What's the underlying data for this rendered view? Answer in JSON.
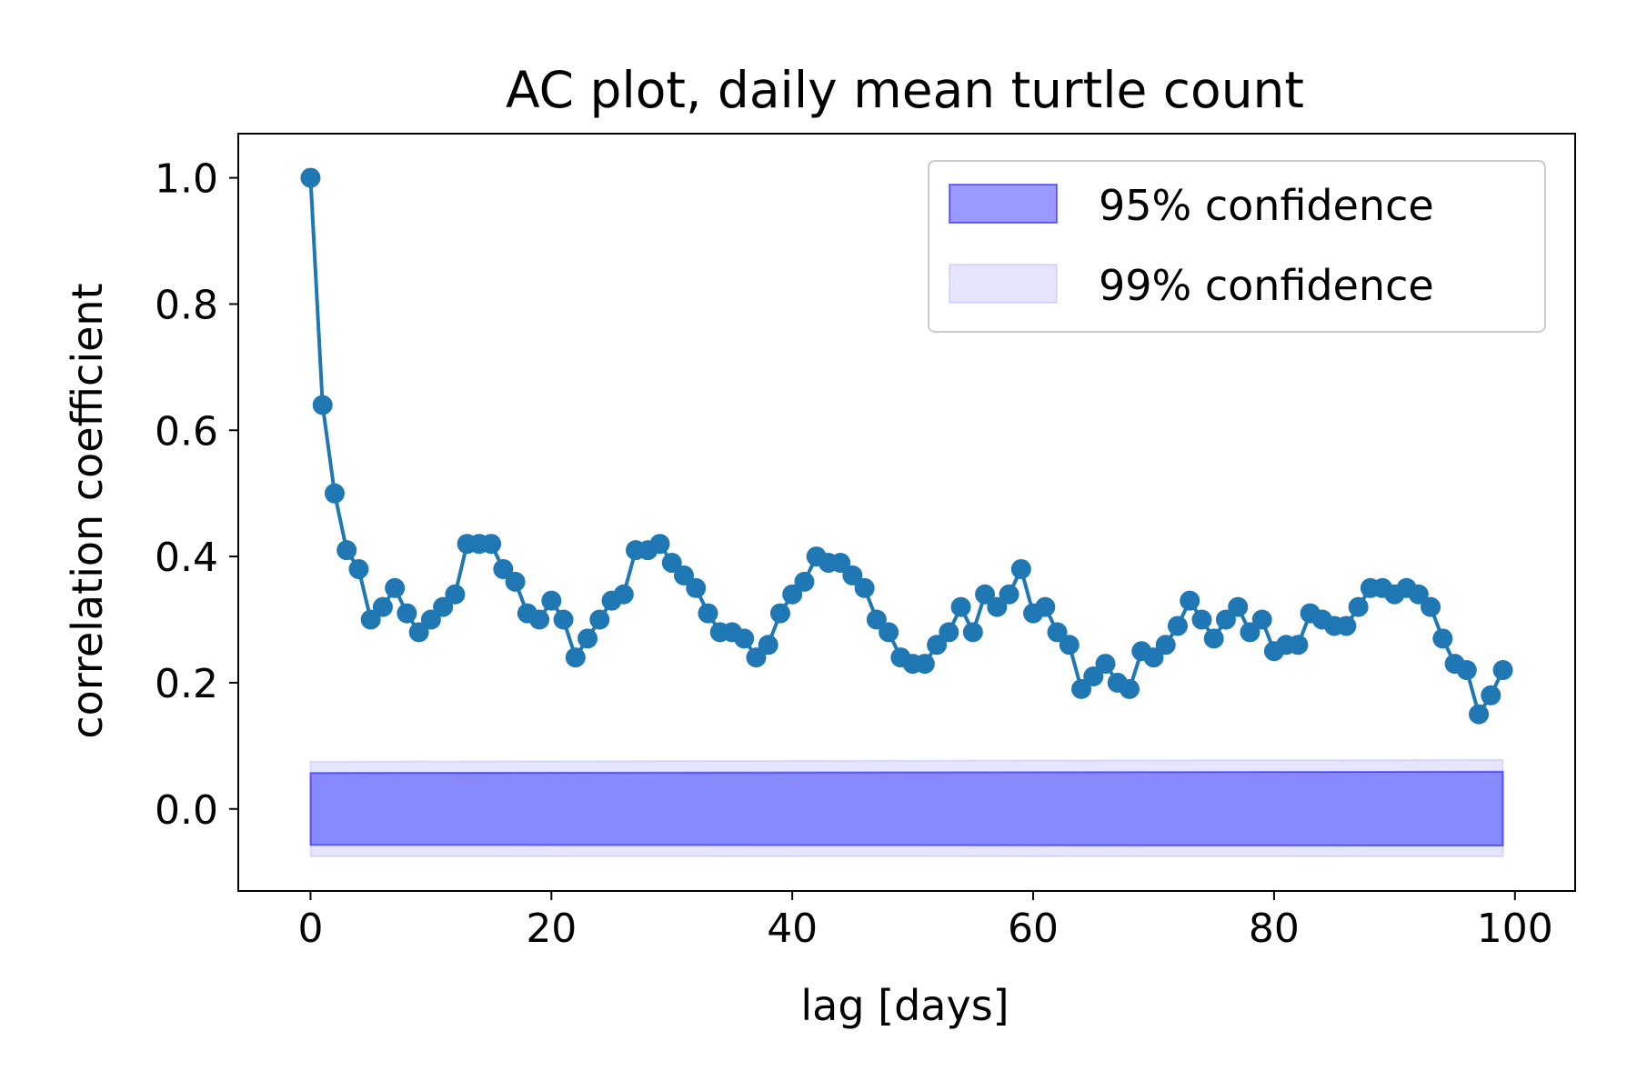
{
  "chart_data": {
    "type": "line",
    "title": "AC plot, daily mean turtle count",
    "xlabel": "lag [days]",
    "ylabel": "correlation coefficient",
    "xlim": [
      -6,
      105
    ],
    "ylim": [
      -0.13,
      1.07
    ],
    "x_ticks": [
      0,
      20,
      40,
      60,
      80,
      100
    ],
    "x_tick_labels": [
      "0",
      "20",
      "40",
      "60",
      "80",
      "100"
    ],
    "y_ticks": [
      0.0,
      0.2,
      0.4,
      0.6,
      0.8,
      1.0
    ],
    "y_tick_labels": [
      "0.0",
      "0.2",
      "0.4",
      "0.6",
      "0.8",
      "1.0"
    ],
    "grid": false,
    "legend_position": "top-right",
    "series": [
      {
        "color": "#1f77b4",
        "marker": "circle",
        "x": [
          0,
          1,
          2,
          3,
          4,
          5,
          6,
          7,
          8,
          9,
          10,
          11,
          12,
          13,
          14,
          15,
          16,
          17,
          18,
          19,
          20,
          21,
          22,
          23,
          24,
          25,
          26,
          27,
          28,
          29,
          30,
          31,
          32,
          33,
          34,
          35,
          36,
          37,
          38,
          39,
          40,
          41,
          42,
          43,
          44,
          45,
          46,
          47,
          48,
          49,
          50,
          51,
          52,
          53,
          54,
          55,
          56,
          57,
          58,
          59,
          60,
          61,
          62,
          63,
          64,
          65,
          66,
          67,
          68,
          69,
          70,
          71,
          72,
          73,
          74,
          75,
          76,
          77,
          78,
          79,
          80,
          81,
          82,
          83,
          84,
          85,
          86,
          87,
          88,
          89,
          90,
          91,
          92,
          93,
          94,
          95,
          96,
          97,
          98,
          99
        ],
        "y": [
          1.0,
          0.64,
          0.5,
          0.41,
          0.38,
          0.3,
          0.32,
          0.35,
          0.31,
          0.28,
          0.3,
          0.32,
          0.34,
          0.42,
          0.42,
          0.42,
          0.38,
          0.36,
          0.31,
          0.3,
          0.33,
          0.3,
          0.24,
          0.27,
          0.3,
          0.33,
          0.34,
          0.41,
          0.41,
          0.42,
          0.39,
          0.37,
          0.35,
          0.31,
          0.28,
          0.28,
          0.27,
          0.24,
          0.26,
          0.31,
          0.34,
          0.36,
          0.4,
          0.39,
          0.39,
          0.37,
          0.35,
          0.3,
          0.28,
          0.24,
          0.23,
          0.23,
          0.26,
          0.28,
          0.32,
          0.28,
          0.34,
          0.32,
          0.34,
          0.38,
          0.31,
          0.32,
          0.28,
          0.26,
          0.19,
          0.21,
          0.23,
          0.2,
          0.19,
          0.25,
          0.24,
          0.26,
          0.29,
          0.33,
          0.3,
          0.27,
          0.3,
          0.32,
          0.28,
          0.3,
          0.25,
          0.26,
          0.26,
          0.31,
          0.3,
          0.29,
          0.29,
          0.32,
          0.35,
          0.35,
          0.34,
          0.35,
          0.34,
          0.32,
          0.27,
          0.23,
          0.22,
          0.15,
          0.18,
          0.22
        ]
      }
    ],
    "bands": [
      {
        "name": "99% confidence",
        "x": [
          0,
          99
        ],
        "lower": [
          -0.075,
          -0.075
        ],
        "upper": [
          0.075,
          0.078
        ],
        "color": "#0000ff",
        "fill_opacity": 0.1,
        "edge_opacity": 0.1
      },
      {
        "name": "95% confidence",
        "x": [
          0,
          99
        ],
        "lower": [
          -0.057,
          -0.058
        ],
        "upper": [
          0.057,
          0.059
        ],
        "color": "#0000ff",
        "fill_opacity": 0.4,
        "edge_opacity": 0.5
      }
    ],
    "legend": {
      "entries": [
        {
          "label": "95% confidence",
          "color": "#0000ff",
          "fill_opacity": 0.4,
          "edge_opacity": 0.5
        },
        {
          "label": "99% confidence",
          "color": "#0000ff",
          "fill_opacity": 0.1,
          "edge_opacity": 0.1
        }
      ]
    }
  }
}
